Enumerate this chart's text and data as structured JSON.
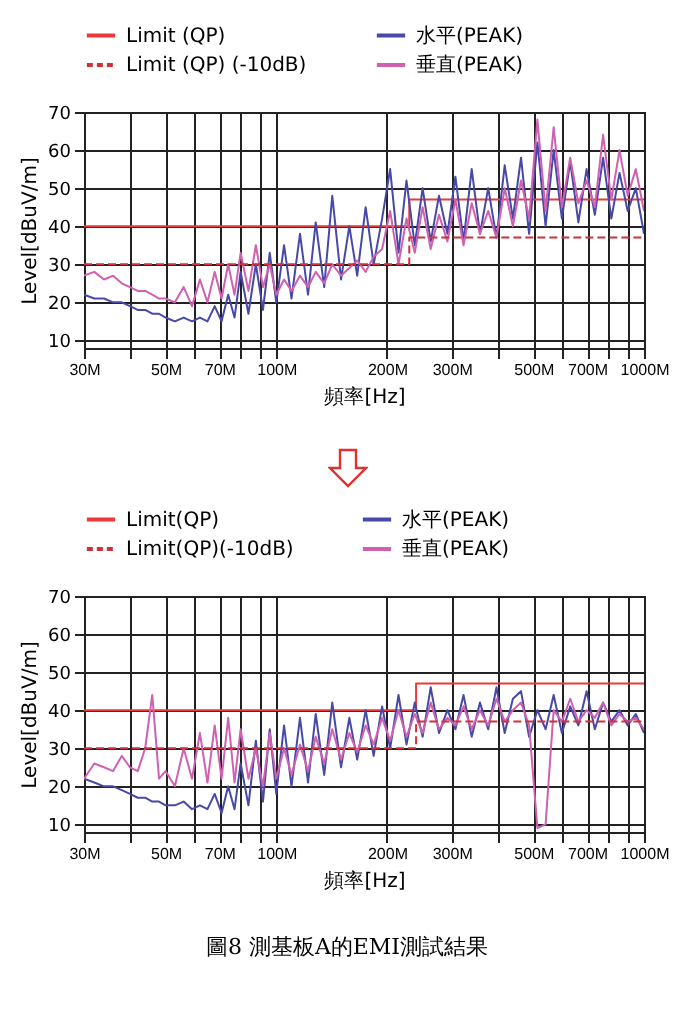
{
  "chart_data": [
    {
      "type": "line",
      "xlabel": "頻率[Hz]",
      "ylabel": "Level[dBuV/m]",
      "log": "x",
      "grid": true,
      "legend": "top",
      "xlim": [
        30,
        1000
      ],
      "xticks": [
        {
          "value": 30,
          "label": "30M"
        },
        {
          "value": 40,
          "label": null
        },
        {
          "value": 50,
          "label": "50M"
        },
        {
          "value": 60,
          "label": null
        },
        {
          "value": 70,
          "label": "70M"
        },
        {
          "value": 80,
          "label": null
        },
        {
          "value": 90,
          "label": null
        },
        {
          "value": 100,
          "label": "100M"
        },
        {
          "value": 200,
          "label": "200M"
        },
        {
          "value": 300,
          "label": "300M"
        },
        {
          "value": 400,
          "label": null
        },
        {
          "value": 500,
          "label": "500M"
        },
        {
          "value": 600,
          "label": null
        },
        {
          "value": 700,
          "label": "700M"
        },
        {
          "value": 800,
          "label": null
        },
        {
          "value": 900,
          "label": null
        },
        {
          "value": 1000,
          "label": "1000M"
        }
      ],
      "ylim": [
        8,
        70
      ],
      "yticks": [
        10,
        20,
        30,
        40,
        50,
        60,
        70
      ],
      "x": [
        30,
        32,
        34,
        36,
        38,
        40,
        42,
        44,
        46,
        48,
        50,
        53,
        56,
        59,
        62,
        65,
        68,
        71,
        74,
        77,
        80,
        84,
        88,
        92,
        96,
        100,
        105,
        110,
        116,
        122,
        128,
        135,
        142,
        150,
        158,
        166,
        175,
        184,
        194,
        204,
        215,
        226,
        238,
        250,
        263,
        277,
        292,
        307,
        323,
        340,
        358,
        377,
        397,
        418,
        440,
        463,
        487,
        513,
        540,
        568,
        598,
        630,
        663,
        698,
        735,
        774,
        815,
        858,
        903,
        950,
        1000
      ],
      "series": [
        {
          "name": "Limit (QP)",
          "color": "#e83a3a",
          "line_style": "solid",
          "x": [
            30,
            230,
            230,
            1000
          ],
          "values": [
            40,
            40,
            47,
            47
          ]
        },
        {
          "name": "水平(PEAK)",
          "color": "#4848a8",
          "values": [
            22,
            21,
            21,
            20,
            20,
            19,
            18,
            18,
            17,
            17,
            16,
            15,
            16,
            15,
            16,
            15,
            19,
            15,
            22,
            16,
            28,
            17,
            30,
            18,
            33,
            20,
            35,
            21,
            38,
            22,
            41,
            24,
            48,
            26,
            40,
            27,
            45,
            30,
            42,
            55,
            33,
            52,
            35,
            50,
            36,
            48,
            38,
            53,
            36,
            55,
            38,
            50,
            37,
            56,
            42,
            58,
            38,
            62,
            40,
            60,
            42,
            57,
            41,
            55,
            43,
            58,
            42,
            54,
            44,
            50,
            38
          ]
        },
        {
          "name": "Limit (QP) (-10dB)",
          "color": "#d0303a",
          "line_style": "dashed",
          "x": [
            30,
            230,
            230,
            1000
          ],
          "values": [
            30,
            30,
            37,
            37
          ]
        },
        {
          "name": "垂直(PEAK)",
          "color": "#d060b0",
          "values": [
            27,
            28,
            26,
            27,
            25,
            24,
            23,
            23,
            22,
            21,
            21,
            20,
            24,
            19,
            26,
            20,
            28,
            21,
            30,
            22,
            33,
            23,
            35,
            24,
            30,
            22,
            26,
            23,
            27,
            24,
            28,
            25,
            30,
            27,
            29,
            31,
            28,
            32,
            34,
            44,
            30,
            42,
            33,
            45,
            34,
            43,
            36,
            47,
            35,
            46,
            38,
            44,
            37,
            50,
            40,
            52,
            42,
            68,
            44,
            66,
            45,
            58,
            46,
            52,
            45,
            64,
            47,
            60,
            48,
            55,
            44
          ]
        }
      ]
    },
    {
      "type": "line",
      "xlabel": "頻率[Hz]",
      "ylabel": "Level[dBuV/m]",
      "log": "x",
      "grid": true,
      "legend": "top",
      "xlim": [
        30,
        1000
      ],
      "xticks": [
        {
          "value": 30,
          "label": "30M"
        },
        {
          "value": 40,
          "label": null
        },
        {
          "value": 50,
          "label": "50M"
        },
        {
          "value": 60,
          "label": null
        },
        {
          "value": 70,
          "label": "70M"
        },
        {
          "value": 80,
          "label": null
        },
        {
          "value": 90,
          "label": null
        },
        {
          "value": 100,
          "label": "100M"
        },
        {
          "value": 200,
          "label": "200M"
        },
        {
          "value": 300,
          "label": "300M"
        },
        {
          "value": 400,
          "label": null
        },
        {
          "value": 500,
          "label": "500M"
        },
        {
          "value": 600,
          "label": null
        },
        {
          "value": 700,
          "label": "700M"
        },
        {
          "value": 800,
          "label": null
        },
        {
          "value": 900,
          "label": null
        },
        {
          "value": 1000,
          "label": "1000M"
        }
      ],
      "ylim": [
        8,
        70
      ],
      "yticks": [
        10,
        20,
        30,
        40,
        50,
        60,
        70
      ],
      "annotations": [
        "圖8 測基板A的EMI測試結果"
      ],
      "x": [
        30,
        32,
        34,
        36,
        38,
        40,
        42,
        44,
        46,
        48,
        50,
        53,
        56,
        59,
        62,
        65,
        68,
        71,
        74,
        77,
        80,
        84,
        88,
        92,
        96,
        100,
        105,
        110,
        116,
        122,
        128,
        135,
        142,
        150,
        158,
        166,
        175,
        184,
        194,
        204,
        215,
        226,
        238,
        250,
        263,
        277,
        292,
        307,
        323,
        340,
        358,
        377,
        397,
        418,
        440,
        463,
        487,
        513,
        540,
        568,
        598,
        630,
        663,
        698,
        735,
        774,
        815,
        858,
        903,
        950,
        1000
      ],
      "series": [
        {
          "name": "Limit(QP)",
          "color": "#e83a3a",
          "line_style": "solid",
          "x": [
            30,
            240,
            240,
            1000
          ],
          "values": [
            40,
            40,
            47,
            47
          ]
        },
        {
          "name": "水平(PEAK)",
          "color": "#4848a8",
          "values": [
            22,
            21,
            20,
            20,
            19,
            18,
            17,
            17,
            16,
            16,
            15,
            15,
            16,
            14,
            15,
            14,
            18,
            13,
            20,
            14,
            26,
            15,
            32,
            16,
            35,
            18,
            36,
            20,
            38,
            21,
            39,
            23,
            42,
            25,
            38,
            27,
            40,
            28,
            41,
            30,
            44,
            31,
            42,
            33,
            46,
            34,
            40,
            35,
            44,
            33,
            42,
            35,
            46,
            34,
            43,
            45,
            33,
            40,
            35,
            44,
            34,
            41,
            36,
            45,
            35,
            42,
            37,
            40,
            36,
            39,
            34
          ]
        },
        {
          "name": "Limit(QP)(-10dB)",
          "color": "#d0303a",
          "line_style": "dashed",
          "x": [
            30,
            240,
            240,
            1000
          ],
          "values": [
            30,
            30,
            37,
            37
          ]
        },
        {
          "name": "垂直(PEAK)",
          "color": "#d060b0",
          "values": [
            22,
            26,
            25,
            24,
            28,
            25,
            24,
            30,
            44,
            22,
            24,
            20,
            30,
            22,
            34,
            21,
            36,
            22,
            38,
            21,
            35,
            22,
            30,
            20,
            34,
            22,
            30,
            23,
            31,
            24,
            33,
            26,
            35,
            27,
            34,
            29,
            36,
            31,
            38,
            32,
            40,
            33,
            39,
            34,
            42,
            35,
            38,
            36,
            41,
            35,
            40,
            36,
            43,
            37,
            40,
            42,
            36,
            9,
            10,
            40,
            37,
            43,
            37,
            40,
            38,
            42,
            36,
            39,
            37,
            38,
            35
          ]
        }
      ]
    }
  ]
}
